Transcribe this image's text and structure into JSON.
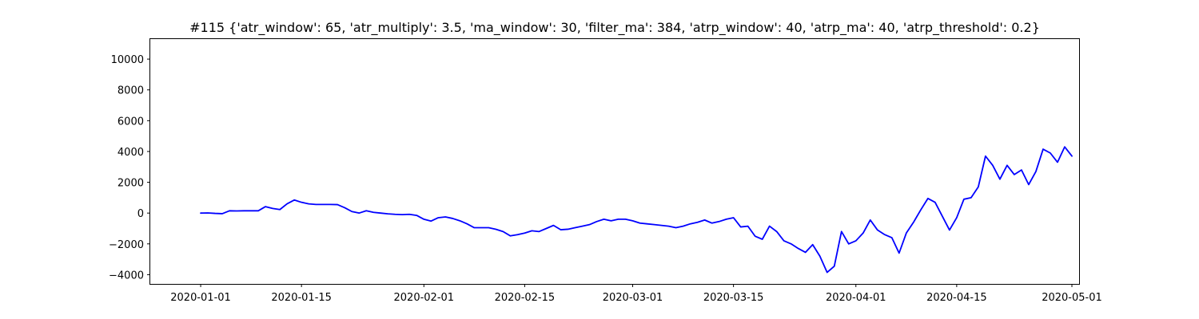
{
  "chart_data": {
    "type": "line",
    "title": "#115 {'atr_window': 65, 'atr_multiply': 3.5, 'ma_window': 30, 'filter_ma': 384, 'atrp_window': 40, 'atrp_ma': 40, 'atrp_threshold': 0.2}",
    "xlabel": "",
    "ylabel": "",
    "x_axis_type": "date",
    "xlim": [
      "2019-12-25",
      "2020-05-02"
    ],
    "ylim": [
      -4600,
      11300
    ],
    "x_ticks": [
      "2020-01-01",
      "2020-01-15",
      "2020-02-01",
      "2020-02-15",
      "2020-03-01",
      "2020-03-15",
      "2020-04-01",
      "2020-04-15",
      "2020-05-01"
    ],
    "y_ticks": [
      -4000,
      -2000,
      0,
      2000,
      4000,
      6000,
      8000,
      10000
    ],
    "y_tick_labels": [
      "−4000",
      "−2000",
      "0",
      "2000",
      "4000",
      "6000",
      "8000",
      "10000"
    ],
    "grid": false,
    "legend": "none",
    "series": [
      {
        "color": "#0000ff",
        "points": [
          [
            "2020-01-01",
            0
          ],
          [
            "2020-01-02",
            10
          ],
          [
            "2020-01-03",
            -20
          ],
          [
            "2020-01-04",
            -40
          ],
          [
            "2020-01-05",
            150
          ],
          [
            "2020-01-06",
            140
          ],
          [
            "2020-01-07",
            150
          ],
          [
            "2020-01-08",
            150
          ],
          [
            "2020-01-09",
            150
          ],
          [
            "2020-01-10",
            420
          ],
          [
            "2020-01-11",
            300
          ],
          [
            "2020-01-12",
            230
          ],
          [
            "2020-01-13",
            600
          ],
          [
            "2020-01-14",
            850
          ],
          [
            "2020-01-15",
            700
          ],
          [
            "2020-01-16",
            600
          ],
          [
            "2020-01-17",
            560
          ],
          [
            "2020-01-18",
            560
          ],
          [
            "2020-01-19",
            560
          ],
          [
            "2020-01-20",
            550
          ],
          [
            "2020-01-21",
            350
          ],
          [
            "2020-01-22",
            100
          ],
          [
            "2020-01-23",
            0
          ],
          [
            "2020-01-24",
            150
          ],
          [
            "2020-01-25",
            50
          ],
          [
            "2020-01-26",
            0
          ],
          [
            "2020-01-27",
            -50
          ],
          [
            "2020-01-28",
            -80
          ],
          [
            "2020-01-29",
            -100
          ],
          [
            "2020-01-30",
            -80
          ],
          [
            "2020-01-31",
            -150
          ],
          [
            "2020-02-01",
            -400
          ],
          [
            "2020-02-02",
            -520
          ],
          [
            "2020-02-03",
            -300
          ],
          [
            "2020-02-04",
            -250
          ],
          [
            "2020-02-05",
            -350
          ],
          [
            "2020-02-06",
            -500
          ],
          [
            "2020-02-07",
            -700
          ],
          [
            "2020-02-08",
            -950
          ],
          [
            "2020-02-09",
            -950
          ],
          [
            "2020-02-10",
            -950
          ],
          [
            "2020-02-11",
            -1050
          ],
          [
            "2020-02-12",
            -1200
          ],
          [
            "2020-02-13",
            -1480
          ],
          [
            "2020-02-14",
            -1400
          ],
          [
            "2020-02-15",
            -1300
          ],
          [
            "2020-02-16",
            -1150
          ],
          [
            "2020-02-17",
            -1200
          ],
          [
            "2020-02-18",
            -1000
          ],
          [
            "2020-02-19",
            -800
          ],
          [
            "2020-02-20",
            -1080
          ],
          [
            "2020-02-21",
            -1050
          ],
          [
            "2020-02-22",
            -950
          ],
          [
            "2020-02-23",
            -850
          ],
          [
            "2020-02-24",
            -750
          ],
          [
            "2020-02-25",
            -550
          ],
          [
            "2020-02-26",
            -400
          ],
          [
            "2020-02-27",
            -500
          ],
          [
            "2020-02-28",
            -400
          ],
          [
            "2020-02-29",
            -400
          ],
          [
            "2020-03-01",
            -500
          ],
          [
            "2020-03-02",
            -650
          ],
          [
            "2020-03-03",
            -700
          ],
          [
            "2020-03-04",
            -750
          ],
          [
            "2020-03-05",
            -800
          ],
          [
            "2020-03-06",
            -850
          ],
          [
            "2020-03-07",
            -950
          ],
          [
            "2020-03-08",
            -850
          ],
          [
            "2020-03-09",
            -700
          ],
          [
            "2020-03-10",
            -600
          ],
          [
            "2020-03-11",
            -450
          ],
          [
            "2020-03-12",
            -650
          ],
          [
            "2020-03-13",
            -550
          ],
          [
            "2020-03-14",
            -400
          ],
          [
            "2020-03-15",
            -300
          ],
          [
            "2020-03-16",
            -900
          ],
          [
            "2020-03-17",
            -850
          ],
          [
            "2020-03-18",
            -1500
          ],
          [
            "2020-03-19",
            -1700
          ],
          [
            "2020-03-20",
            -850
          ],
          [
            "2020-03-21",
            -1200
          ],
          [
            "2020-03-22",
            -1800
          ],
          [
            "2020-03-23",
            -2000
          ],
          [
            "2020-03-24",
            -2300
          ],
          [
            "2020-03-25",
            -2550
          ],
          [
            "2020-03-26",
            -2050
          ],
          [
            "2020-03-27",
            -2800
          ],
          [
            "2020-03-28",
            -3850
          ],
          [
            "2020-03-29",
            -3450
          ],
          [
            "2020-03-30",
            -1200
          ],
          [
            "2020-03-31",
            -2000
          ],
          [
            "2020-04-01",
            -1800
          ],
          [
            "2020-04-02",
            -1300
          ],
          [
            "2020-04-03",
            -450
          ],
          [
            "2020-04-04",
            -1100
          ],
          [
            "2020-04-05",
            -1400
          ],
          [
            "2020-04-06",
            -1600
          ],
          [
            "2020-04-07",
            -2600
          ],
          [
            "2020-04-08",
            -1300
          ],
          [
            "2020-04-09",
            -600
          ],
          [
            "2020-04-10",
            200
          ],
          [
            "2020-04-11",
            950
          ],
          [
            "2020-04-12",
            700
          ],
          [
            "2020-04-13",
            -200
          ],
          [
            "2020-04-14",
            -1100
          ],
          [
            "2020-04-15",
            -300
          ],
          [
            "2020-04-16",
            900
          ],
          [
            "2020-04-17",
            1000
          ],
          [
            "2020-04-18",
            1700
          ],
          [
            "2020-04-19",
            3700
          ],
          [
            "2020-04-20",
            3100
          ],
          [
            "2020-04-21",
            2200
          ],
          [
            "2020-04-22",
            3100
          ],
          [
            "2020-04-23",
            2500
          ],
          [
            "2020-04-24",
            2800
          ],
          [
            "2020-04-25",
            1850
          ],
          [
            "2020-04-26",
            2700
          ],
          [
            "2020-04-27",
            4150
          ],
          [
            "2020-04-28",
            3900
          ],
          [
            "2020-04-29",
            3300
          ],
          [
            "2020-04-30",
            4300
          ],
          [
            "2020-05-01",
            3700
          ]
        ]
      }
    ]
  }
}
